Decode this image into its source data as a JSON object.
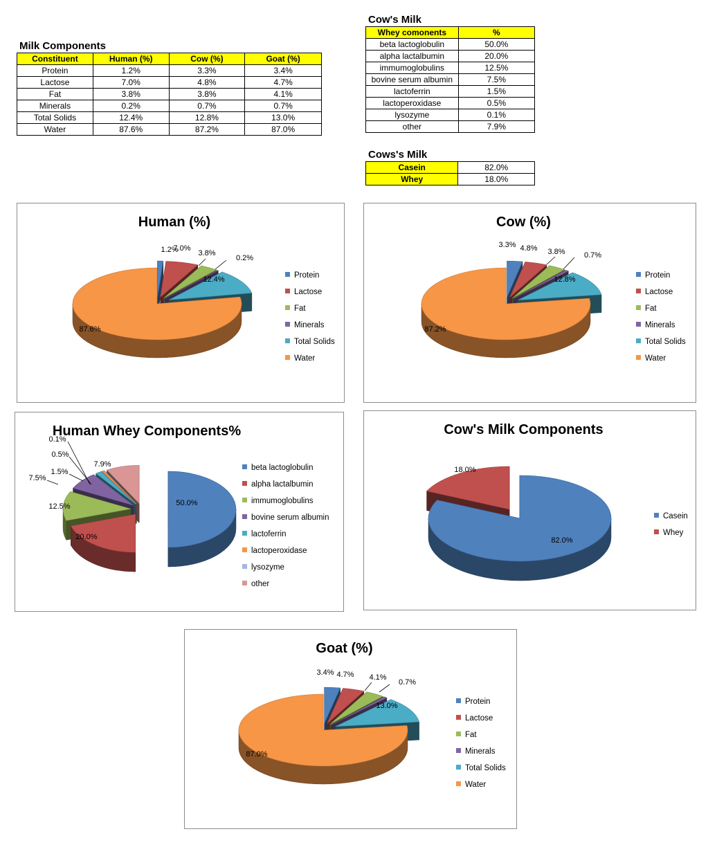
{
  "milk_table": {
    "title": "Milk Components",
    "headers": [
      "Constituent",
      "Human (%)",
      "Cow (%)",
      "Goat (%)"
    ],
    "rows": [
      [
        "Protein",
        "1.2%",
        "3.3%",
        "3.4%"
      ],
      [
        "Lactose",
        "7.0%",
        "4.8%",
        "4.7%"
      ],
      [
        "Fat",
        "3.8%",
        "3.8%",
        "4.1%"
      ],
      [
        "Minerals",
        "0.2%",
        "0.7%",
        "0.7%"
      ],
      [
        "Total Solids",
        "12.4%",
        "12.8%",
        "13.0%"
      ],
      [
        "Water",
        "87.6%",
        "87.2%",
        "87.0%"
      ]
    ]
  },
  "whey_table": {
    "title": "Cow's Milk",
    "headers": [
      "Whey comonents",
      "%"
    ],
    "rows": [
      [
        "beta lactoglobulin",
        "50.0%"
      ],
      [
        "alpha lactalbumin",
        "20.0%"
      ],
      [
        "immumoglobulins",
        "12.5%"
      ],
      [
        "bovine serum albumin",
        "7.5%"
      ],
      [
        "lactoferrin",
        "1.5%"
      ],
      [
        "lactoperoxidase",
        "0.5%"
      ],
      [
        "lysozyme",
        "0.1%"
      ],
      [
        "other",
        "7.9%"
      ]
    ]
  },
  "casein_table": {
    "title": "Cows's Milk",
    "rows": [
      [
        "Casein",
        "82.0%"
      ],
      [
        "Whey",
        "18.0%"
      ]
    ]
  },
  "colors": {
    "blue": "#4f81bd",
    "red": "#c0504d",
    "green": "#9bbb59",
    "purple": "#8064a2",
    "teal": "#4bacc6",
    "orange": "#f79646",
    "lavender": "#a5b6e0",
    "pink": "#d99694",
    "border": "#8c8c8c",
    "highlight": "#ffff00"
  },
  "chart_data": [
    {
      "type": "pie",
      "title": "Human (%)",
      "categories": [
        "Protein",
        "Lactose",
        "Fat",
        "Minerals",
        "Total Solids",
        "Water"
      ],
      "values": [
        1.2,
        7.0,
        3.8,
        0.2,
        12.4,
        87.6
      ],
      "labels": [
        "1.2%",
        "7.0%",
        "3.8%",
        "0.2%",
        "12.4%",
        "87.6%"
      ],
      "legend": "right"
    },
    {
      "type": "pie",
      "title": "Cow (%)",
      "categories": [
        "Protein",
        "Lactose",
        "Fat",
        "Minerals",
        "Total Solids",
        "Water"
      ],
      "values": [
        3.3,
        4.8,
        3.8,
        0.7,
        12.8,
        87.2
      ],
      "labels": [
        "3.3%",
        "4.8%",
        "3.8%",
        "0.7%",
        "12.8%",
        "87.2%"
      ],
      "legend": "right"
    },
    {
      "type": "pie",
      "title": "Human Whey Components%",
      "categories": [
        "beta lactoglobulin",
        "alpha lactalbumin",
        "immumoglobulins",
        "bovine serum albumin",
        "lactoferrin",
        "lactoperoxidase",
        "lysozyme",
        "other"
      ],
      "values": [
        50.0,
        20.0,
        12.5,
        7.5,
        1.5,
        0.5,
        0.1,
        7.9
      ],
      "labels": [
        "50.0%",
        "20.0%",
        "12.5%",
        "7.5%",
        "1.5%",
        "0.5%",
        "0.1%",
        "7.9%"
      ],
      "legend": "right"
    },
    {
      "type": "pie",
      "title": "Cow's Milk Components",
      "categories": [
        "Casein",
        "Whey"
      ],
      "values": [
        82.0,
        18.0
      ],
      "labels": [
        "82.0%",
        "18.0%"
      ],
      "legend": "right"
    },
    {
      "type": "pie",
      "title": "Goat (%)",
      "categories": [
        "Protein",
        "Lactose",
        "Fat",
        "Minerals",
        "Total Solids",
        "Water"
      ],
      "values": [
        3.4,
        4.7,
        4.1,
        0.7,
        13.0,
        87.0
      ],
      "labels": [
        "3.4%",
        "4.7%",
        "4.1%",
        "0.7%",
        "13.0%",
        "87.0%"
      ],
      "legend": "right"
    }
  ]
}
